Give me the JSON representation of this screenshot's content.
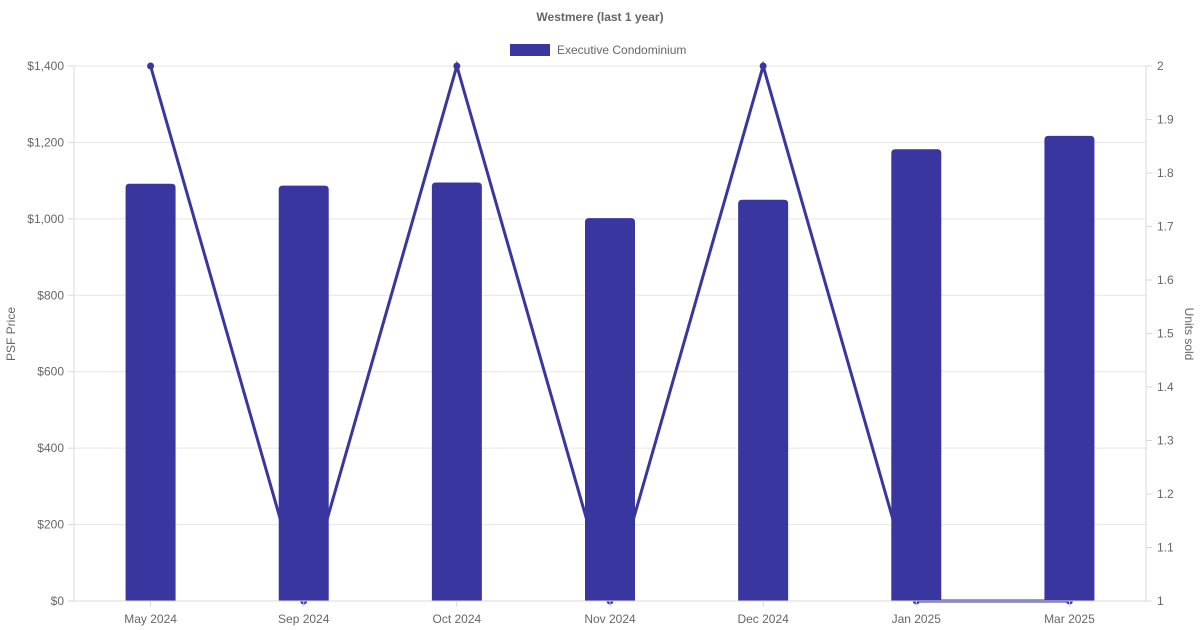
{
  "chart_data": {
    "type": "bar",
    "title": "Westmere (last 1 year)",
    "categories": [
      "May 2024",
      "Sep 2024",
      "Oct 2024",
      "Nov 2024",
      "Dec 2024",
      "Jan 2025",
      "Mar 2025"
    ],
    "series": [
      {
        "name": "Executive Condominium",
        "type": "bar",
        "axis": "left",
        "values": [
          1092,
          1087,
          1095,
          1002,
          1050,
          1182,
          1217
        ]
      },
      {
        "type": "line",
        "axis": "right",
        "values": [
          2,
          1,
          2,
          1,
          2,
          1,
          1
        ]
      }
    ],
    "y_left": {
      "label": "PSF Price",
      "min": 0,
      "max": 1400,
      "ticks": [
        0,
        200,
        400,
        600,
        800,
        1000,
        1200,
        1400
      ],
      "tick_labels": [
        "$0",
        "$200",
        "$400",
        "$600",
        "$800",
        "$1,000",
        "$1,200",
        "$1,400"
      ]
    },
    "y_right": {
      "label": "Units sold",
      "min": 1,
      "max": 2,
      "ticks": [
        1,
        1.1,
        1.2,
        1.3,
        1.4,
        1.5,
        1.6,
        1.7,
        1.8,
        1.9,
        2
      ],
      "tick_labels": [
        "1",
        "1.1",
        "1.2",
        "1.3",
        "1.4",
        "1.5",
        "1.6",
        "1.7",
        "1.8",
        "1.9",
        "2"
      ]
    },
    "grid": true,
    "legend_position": "top",
    "colors": {
      "series": "#3a36a0"
    }
  }
}
